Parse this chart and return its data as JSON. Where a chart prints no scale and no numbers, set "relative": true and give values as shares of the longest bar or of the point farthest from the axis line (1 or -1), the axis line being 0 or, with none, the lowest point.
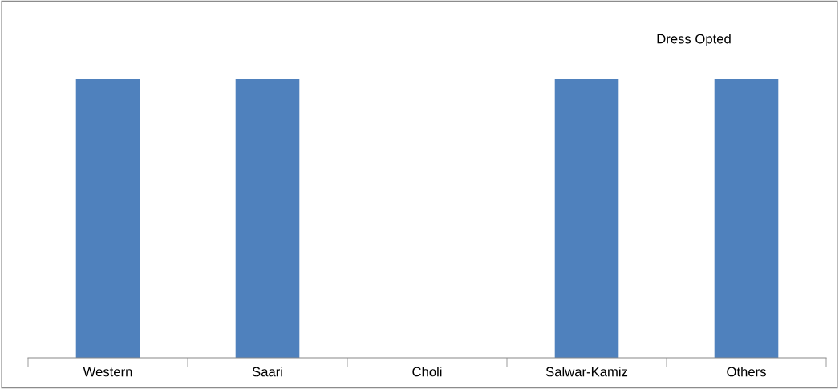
{
  "chart_data": {
    "type": "bar",
    "title": "Dress Opted",
    "relative": true,
    "categories": [
      "Western",
      "Saari",
      "Choli",
      "Salwar-Kamiz",
      "Others"
    ],
    "values": [
      1,
      1,
      0,
      1,
      1
    ],
    "color": "#4f81bd",
    "grid": false,
    "legend": false
  }
}
